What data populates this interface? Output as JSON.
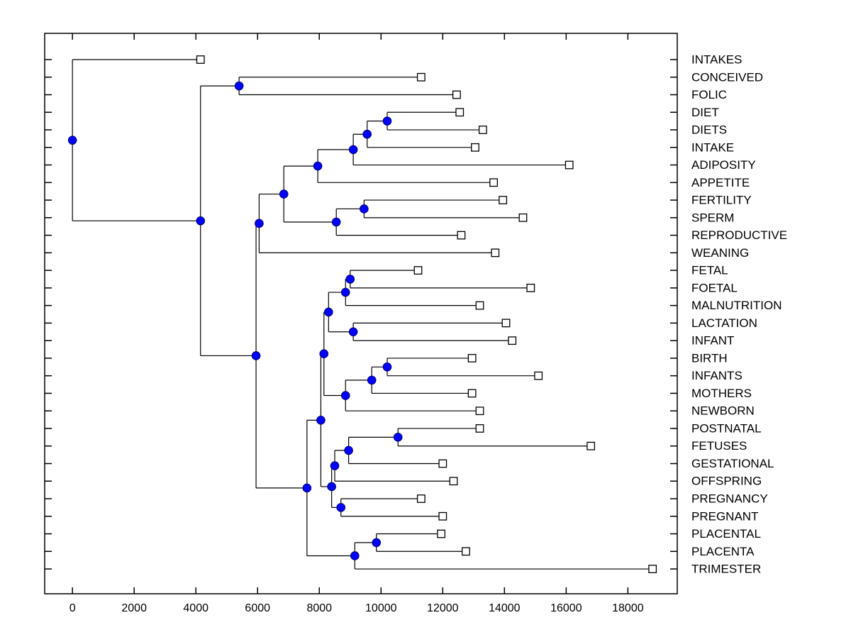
{
  "figure": {
    "background": "#ffffff",
    "border_color": "#000000",
    "branch_color": "#000000",
    "internal_marker": {
      "shape": "circle",
      "fill": "#0000ff",
      "stroke": "#000066",
      "radius": 5.8
    },
    "leaf_marker": {
      "shape": "square",
      "fill": "#ffffff",
      "stroke": "#000000",
      "size": 10.5
    },
    "label_color": "#000000"
  },
  "chart_data": {
    "type": "dendrogram",
    "orientation": "horizontal-left-to-right",
    "title": "",
    "xlabel": "",
    "ylabel": "",
    "grid": false,
    "x_axis": {
      "min": -900,
      "max": 19600,
      "tick_values": [
        0,
        2000,
        4000,
        6000,
        8000,
        10000,
        12000,
        14000,
        16000,
        18000
      ],
      "tick_labels": [
        "0",
        "2000",
        "4000",
        "6000",
        "8000",
        "10000",
        "12000",
        "14000",
        "16000",
        "18000"
      ]
    },
    "leaves": [
      {
        "label": "INTAKES",
        "value": 4150
      },
      {
        "label": "CONCEIVED",
        "value": 11300
      },
      {
        "label": "FOLIC",
        "value": 12450
      },
      {
        "label": "DIET",
        "value": 12550
      },
      {
        "label": "DIETS",
        "value": 13300
      },
      {
        "label": "INTAKE",
        "value": 13050
      },
      {
        "label": "ADIPOSITY",
        "value": 16100
      },
      {
        "label": "APPETITE",
        "value": 13650
      },
      {
        "label": "FERTILITY",
        "value": 13950
      },
      {
        "label": "SPERM",
        "value": 14600
      },
      {
        "label": "REPRODUCTIVE",
        "value": 12600
      },
      {
        "label": "WEANING",
        "value": 13700
      },
      {
        "label": "FETAL",
        "value": 11200
      },
      {
        "label": "FOETAL",
        "value": 14850
      },
      {
        "label": "MALNUTRITION",
        "value": 13200
      },
      {
        "label": "LACTATION",
        "value": 14050
      },
      {
        "label": "INFANT",
        "value": 14250
      },
      {
        "label": "BIRTH",
        "value": 12950
      },
      {
        "label": "INFANTS",
        "value": 15100
      },
      {
        "label": "MOTHERS",
        "value": 12950
      },
      {
        "label": "NEWBORN",
        "value": 13200
      },
      {
        "label": "POSTNATAL",
        "value": 13200
      },
      {
        "label": "FETUSES",
        "value": 16800
      },
      {
        "label": "GESTATIONAL",
        "value": 12000
      },
      {
        "label": "OFFSPRING",
        "value": 12350
      },
      {
        "label": "PREGNANCY",
        "value": 11300
      },
      {
        "label": "PREGNANT",
        "value": 12000
      },
      {
        "label": "PLACENTAL",
        "value": 11950
      },
      {
        "label": "PLACENTA",
        "value": 12750
      },
      {
        "label": "TRIMESTER",
        "value": 18800
      }
    ],
    "tree": {
      "v": 0,
      "c": [
        {
          "leaf": 0
        },
        {
          "v": 4150,
          "c": [
            {
              "v": 5400,
              "c": [
                {
                  "leaf": 1
                },
                {
                  "leaf": 2
                }
              ]
            },
            {
              "v": 5950,
              "c": [
                {
                  "v": 6050,
                  "c": [
                    {
                      "v": 6850,
                      "c": [
                        {
                          "v": 7950,
                          "c": [
                            {
                              "v": 9100,
                              "c": [
                                {
                                  "v": 9550,
                                  "c": [
                                    {
                                      "v": 10200,
                                      "c": [
                                        {
                                          "leaf": 3
                                        },
                                        {
                                          "leaf": 4
                                        }
                                      ]
                                    },
                                    {
                                      "leaf": 5
                                    }
                                  ]
                                },
                                {
                                  "leaf": 6
                                }
                              ]
                            },
                            {
                              "leaf": 7
                            }
                          ]
                        },
                        {
                          "v": 8550,
                          "c": [
                            {
                              "v": 9450,
                              "c": [
                                {
                                  "leaf": 8
                                },
                                {
                                  "leaf": 9
                                }
                              ]
                            },
                            {
                              "leaf": 10
                            }
                          ]
                        }
                      ]
                    },
                    {
                      "leaf": 11
                    }
                  ]
                },
                {
                  "v": 7600,
                  "c": [
                    {
                      "v": 8050,
                      "c": [
                        {
                          "v": 8150,
                          "c": [
                            {
                              "v": 8300,
                              "c": [
                                {
                                  "v": 8850,
                                  "c": [
                                    {
                                      "v": 9000,
                                      "c": [
                                        {
                                          "leaf": 12
                                        },
                                        {
                                          "leaf": 13
                                        }
                                      ]
                                    },
                                    {
                                      "leaf": 14
                                    }
                                  ]
                                },
                                {
                                  "v": 9100,
                                  "c": [
                                    {
                                      "leaf": 15
                                    },
                                    {
                                      "leaf": 16
                                    }
                                  ]
                                }
                              ]
                            },
                            {
                              "v": 8850,
                              "c": [
                                {
                                  "v": 9700,
                                  "c": [
                                    {
                                      "v": 10200,
                                      "c": [
                                        {
                                          "leaf": 17
                                        },
                                        {
                                          "leaf": 18
                                        }
                                      ]
                                    },
                                    {
                                      "leaf": 19
                                    }
                                  ]
                                },
                                {
                                  "leaf": 20
                                }
                              ]
                            }
                          ]
                        },
                        {
                          "v": 8400,
                          "c": [
                            {
                              "v": 8500,
                              "c": [
                                {
                                  "v": 8950,
                                  "c": [
                                    {
                                      "v": 10550,
                                      "c": [
                                        {
                                          "leaf": 21
                                        },
                                        {
                                          "leaf": 22
                                        }
                                      ]
                                    },
                                    {
                                      "leaf": 23
                                    }
                                  ]
                                },
                                {
                                  "leaf": 24
                                }
                              ]
                            },
                            {
                              "v": 8700,
                              "c": [
                                {
                                  "leaf": 25
                                },
                                {
                                  "leaf": 26
                                }
                              ]
                            }
                          ]
                        }
                      ]
                    },
                    {
                      "v": 9150,
                      "c": [
                        {
                          "v": 9850,
                          "c": [
                            {
                              "leaf": 27
                            },
                            {
                              "leaf": 28
                            }
                          ]
                        },
                        {
                          "leaf": 29
                        }
                      ]
                    }
                  ]
                }
              ]
            }
          ]
        }
      ]
    }
  }
}
